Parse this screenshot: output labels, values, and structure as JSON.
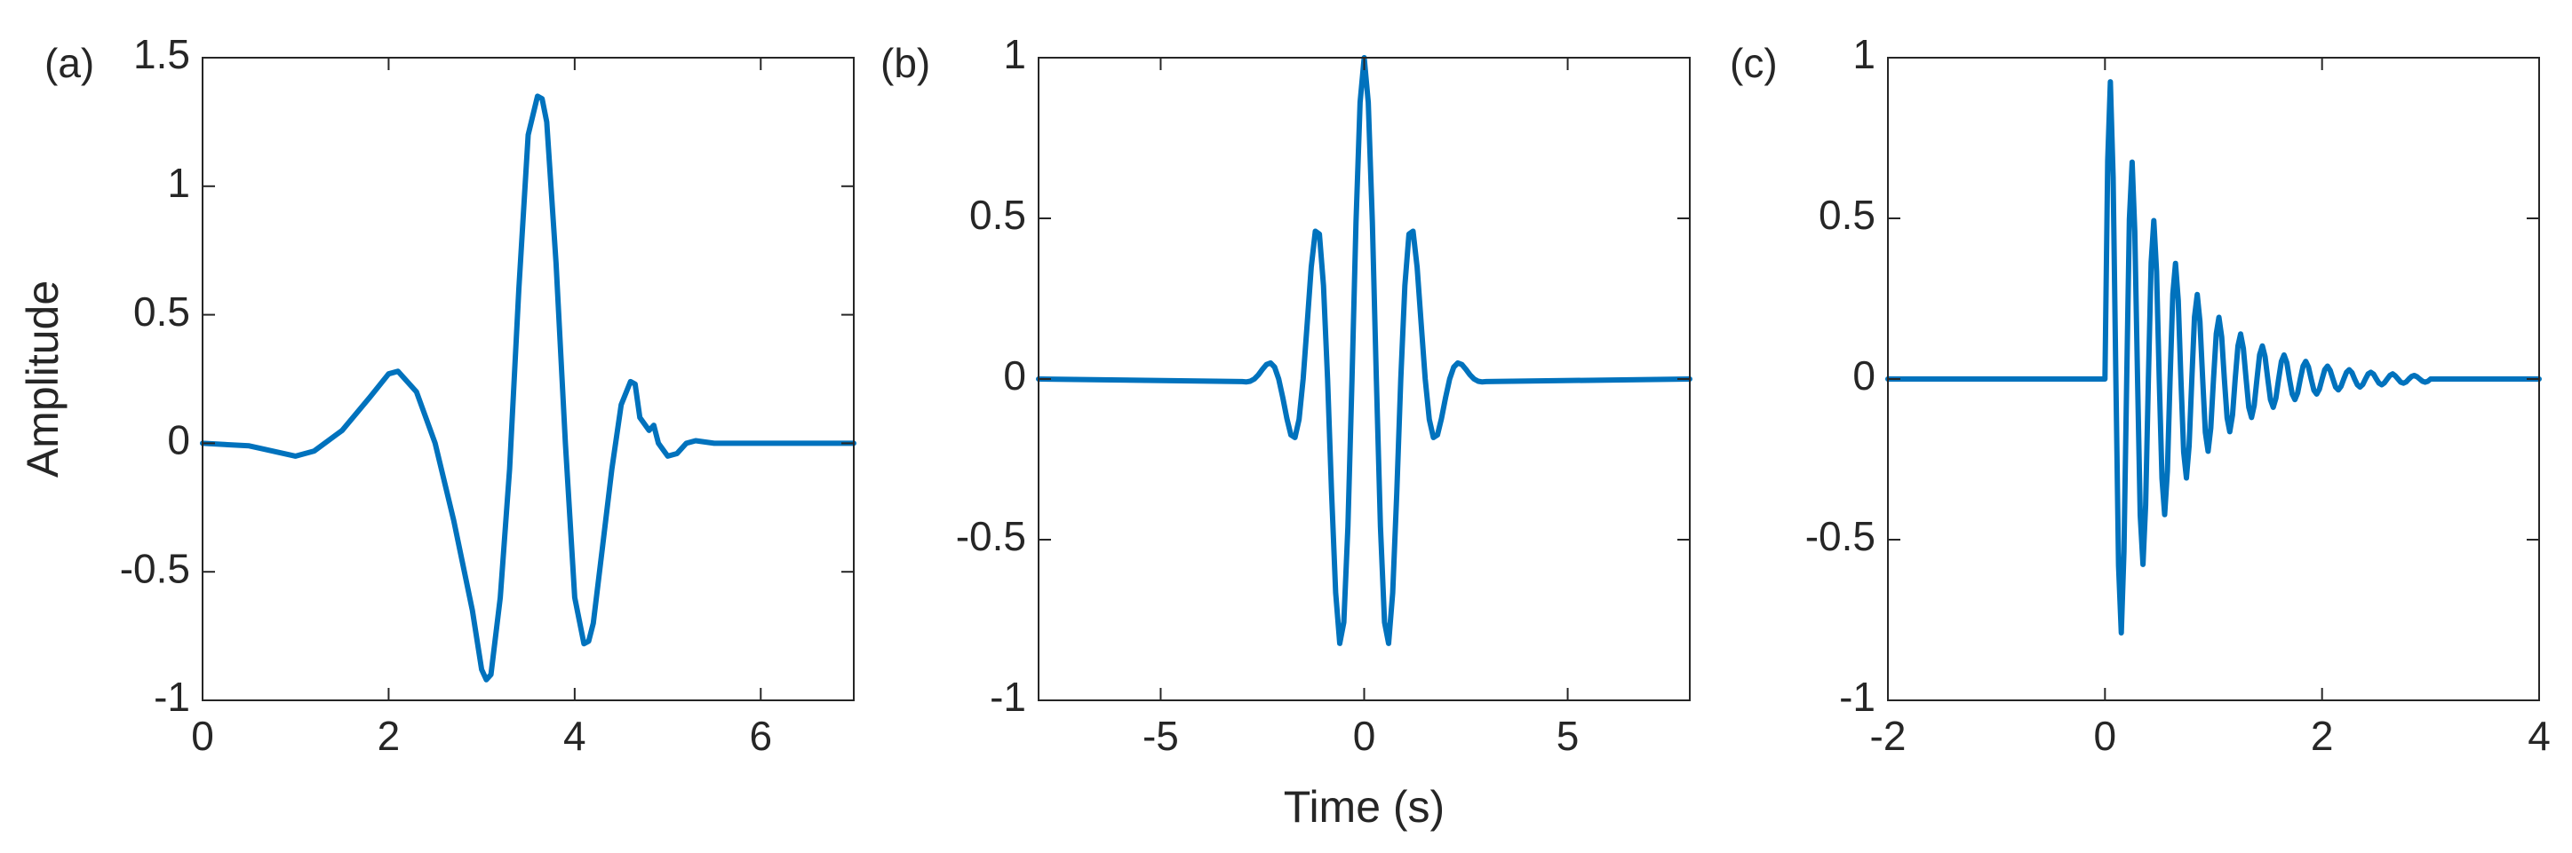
{
  "chart_data": [
    {
      "type": "line",
      "label": "(a)",
      "ylabel": "Amplitude",
      "color": "#0072BD",
      "xlim": [
        0,
        7
      ],
      "xticks": [
        0,
        2,
        4,
        6
      ],
      "ylim": [
        -1,
        1.5
      ],
      "yticks": [
        -1,
        -0.5,
        0,
        0.5,
        1,
        1.5
      ],
      "x": [
        0,
        0.5,
        1.0,
        1.2,
        1.5,
        1.8,
        2.0,
        2.1,
        2.3,
        2.5,
        2.7,
        2.9,
        3.0,
        3.05,
        3.1,
        3.2,
        3.3,
        3.4,
        3.5,
        3.6,
        3.65,
        3.7,
        3.8,
        3.9,
        4.0,
        4.1,
        4.15,
        4.2,
        4.3,
        4.4,
        4.5,
        4.6,
        4.65,
        4.7,
        4.8,
        4.85,
        4.9,
        5.0,
        5.1,
        5.2,
        5.3,
        5.5,
        6,
        7
      ],
      "values": [
        0,
        -0.01,
        -0.05,
        -0.03,
        0.05,
        0.18,
        0.27,
        0.28,
        0.2,
        0.0,
        -0.3,
        -0.65,
        -0.88,
        -0.92,
        -0.9,
        -0.6,
        -0.1,
        0.6,
        1.2,
        1.35,
        1.34,
        1.25,
        0.7,
        0.0,
        -0.6,
        -0.78,
        -0.77,
        -0.7,
        -0.4,
        -0.1,
        0.15,
        0.24,
        0.23,
        0.1,
        0.05,
        0.07,
        0.0,
        -0.05,
        -0.04,
        0.0,
        0.01,
        0,
        0,
        0
      ]
    },
    {
      "type": "line",
      "label": "(b)",
      "xlabel": "Time (s)",
      "color": "#0072BD",
      "xlim": [
        -8,
        8
      ],
      "xticks": [
        -5,
        0,
        5
      ],
      "ylim": [
        -1,
        1
      ],
      "yticks": [
        -1,
        -0.5,
        0,
        0.5,
        1
      ],
      "x": [
        -8,
        -3.0,
        -2.9,
        -2.8,
        -2.7,
        -2.6,
        -2.5,
        -2.4,
        -2.3,
        -2.2,
        -2.1,
        -2.0,
        -1.9,
        -1.8,
        -1.7,
        -1.6,
        -1.5,
        -1.4,
        -1.3,
        -1.2,
        -1.1,
        -1.0,
        -0.9,
        -0.8,
        -0.7,
        -0.6,
        -0.5,
        -0.4,
        -0.3,
        -0.2,
        -0.1,
        0,
        0.1,
        0.2,
        0.3,
        0.4,
        0.5,
        0.6,
        0.7,
        0.8,
        0.9,
        1.0,
        1.1,
        1.2,
        1.3,
        1.4,
        1.5,
        1.6,
        1.7,
        1.8,
        1.9,
        2.0,
        2.1,
        2.2,
        2.3,
        2.4,
        2.5,
        2.6,
        2.7,
        2.8,
        2.9,
        3.0,
        8
      ],
      "values": [
        0,
        -0.008,
        -0.009,
        -0.007,
        0,
        0.013,
        0.03,
        0.045,
        0.05,
        0.037,
        0,
        -0.058,
        -0.123,
        -0.174,
        -0.182,
        -0.126,
        0,
        0.174,
        0.348,
        0.46,
        0.451,
        0.291,
        0,
        -0.354,
        -0.665,
        -0.823,
        -0.757,
        -0.459,
        0,
        0.489,
        0.861,
        1,
        0.861,
        0.489,
        0,
        -0.459,
        -0.757,
        -0.823,
        -0.665,
        -0.354,
        0,
        0.291,
        0.451,
        0.46,
        0.348,
        0.174,
        0,
        -0.126,
        -0.182,
        -0.174,
        -0.123,
        -0.058,
        0,
        0.037,
        0.05,
        0.045,
        0.03,
        0.013,
        0,
        -0.007,
        -0.009,
        -0.008,
        0
      ]
    },
    {
      "type": "line",
      "label": "(c)",
      "color": "#0072BD",
      "xlim": [
        -2,
        4
      ],
      "xticks": [
        -2,
        0,
        2,
        4
      ],
      "ylim": [
        -1,
        1
      ],
      "yticks": [
        -1,
        -0.5,
        0,
        0.5,
        1
      ],
      "x": [
        -2,
        0,
        0.025,
        0.05,
        0.075,
        0.1,
        0.125,
        0.15,
        0.175,
        0.2,
        0.225,
        0.25,
        0.275,
        0.3,
        0.325,
        0.35,
        0.375,
        0.4,
        0.425,
        0.45,
        0.475,
        0.5,
        0.525,
        0.55,
        0.575,
        0.6,
        0.625,
        0.65,
        0.675,
        0.7,
        0.725,
        0.75,
        0.775,
        0.8,
        0.825,
        0.85,
        0.875,
        0.9,
        0.925,
        0.95,
        0.975,
        1.0,
        1.025,
        1.05,
        1.075,
        1.1,
        1.125,
        1.15,
        1.175,
        1.2,
        1.225,
        1.25,
        1.275,
        1.3,
        1.325,
        1.35,
        1.375,
        1.4,
        1.425,
        1.45,
        1.475,
        1.5,
        1.525,
        1.55,
        1.575,
        1.6,
        1.625,
        1.65,
        1.675,
        1.7,
        1.725,
        1.75,
        1.775,
        1.8,
        1.825,
        1.85,
        1.875,
        1.9,
        1.925,
        1.95,
        1.975,
        2.0,
        2.025,
        2.05,
        2.075,
        2.1,
        2.125,
        2.15,
        2.175,
        2.2,
        2.225,
        2.25,
        2.275,
        2.3,
        2.325,
        2.35,
        2.375,
        2.4,
        2.425,
        2.45,
        2.475,
        2.5,
        2.525,
        2.55,
        2.575,
        2.6,
        2.625,
        2.65,
        2.675,
        2.7,
        2.725,
        2.75,
        2.775,
        2.8,
        2.825,
        2.85,
        2.875,
        2.9,
        2.925,
        2.95,
        2.975,
        3.0,
        4
      ],
      "values": [
        0,
        0,
        0.68,
        0.925,
        0.628,
        0,
        -0.581,
        -0.79,
        -0.537,
        0,
        0.497,
        0.675,
        0.459,
        0,
        -0.424,
        -0.577,
        -0.392,
        0,
        0.363,
        0.493,
        0.335,
        0,
        -0.31,
        -0.422,
        -0.286,
        0,
        0.265,
        0.36,
        0.245,
        0,
        -0.227,
        -0.308,
        -0.209,
        0,
        0.193,
        0.263,
        0.179,
        0,
        -0.166,
        -0.225,
        -0.153,
        0,
        0.141,
        0.192,
        0.131,
        0,
        -0.121,
        -0.164,
        -0.112,
        0,
        0.103,
        0.14,
        0.095,
        0,
        -0.088,
        -0.12,
        -0.082,
        0,
        0.076,
        0.103,
        0.07,
        0,
        -0.064,
        -0.088,
        -0.06,
        0,
        0.055,
        0.075,
        0.051,
        0,
        -0.047,
        -0.064,
        -0.043,
        0,
        0.04,
        0.055,
        0.037,
        0,
        -0.035,
        -0.047,
        -0.032,
        0,
        0.029,
        0.04,
        0.027,
        0,
        -0.025,
        -0.034,
        -0.023,
        0,
        0.021,
        0.029,
        0.02,
        0,
        -0.018,
        -0.025,
        -0.017,
        0,
        0.016,
        0.021,
        0.015,
        0,
        -0.013,
        -0.018,
        -0.012,
        0,
        0.011,
        0.016,
        0.01,
        0,
        -0.01,
        -0.013,
        -0.009,
        0,
        0.008,
        0.011,
        0.007,
        0,
        -0.007,
        -0.01,
        -0.007,
        0,
        0
      ]
    }
  ]
}
